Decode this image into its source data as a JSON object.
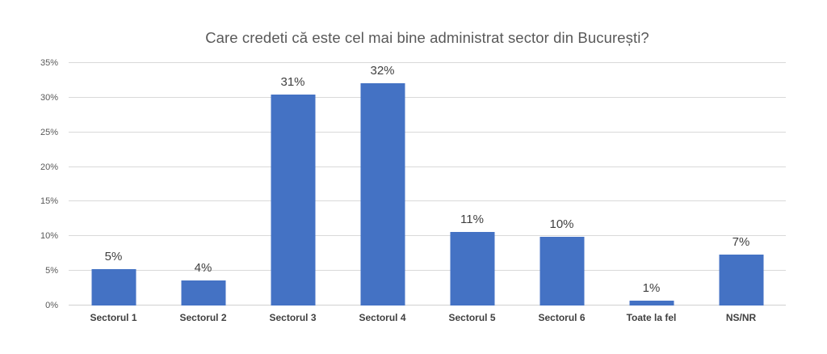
{
  "chart_data": {
    "type": "bar",
    "title": "Care credeti că este cel mai bine administrat sector din București?",
    "categories": [
      "Sectorul 1",
      "Sectorul 2",
      "Sectorul 3",
      "Sectorul 4",
      "Sectorul 5",
      "Sectorul 6",
      "Toate la fel",
      "NS/NR"
    ],
    "values": [
      5,
      4,
      31,
      32,
      11,
      10,
      1,
      7
    ],
    "value_labels": [
      "5%",
      "4%",
      "31%",
      "32%",
      "11%",
      "10%",
      "1%",
      "7%"
    ],
    "precise_values": [
      5.3,
      3.6,
      30.5,
      32.1,
      10.6,
      9.9,
      0.7,
      7.3
    ],
    "xlabel": "",
    "ylabel": "",
    "ylim": [
      0,
      35
    ],
    "ytick_step": 5,
    "ytick_labels": [
      "0%",
      "5%",
      "10%",
      "15%",
      "20%",
      "25%",
      "30%",
      "35%"
    ],
    "grid": true,
    "legend": false
  },
  "colors": {
    "bar": "#4472C4",
    "gridline": "#D9D9D9",
    "baseline": "#D0D0D0",
    "title_text": "#595959",
    "ytick_text": "#595959",
    "data_label_text": "#404040",
    "category_text": "#404040"
  }
}
